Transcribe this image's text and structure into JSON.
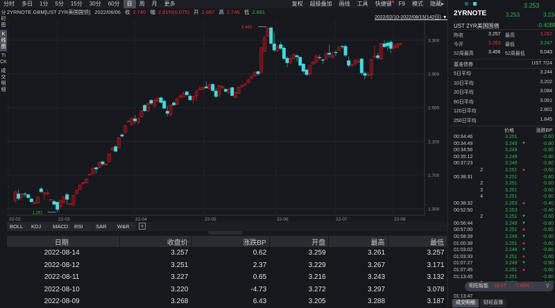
{
  "toolbar": {
    "periods": [
      "分时",
      "多日",
      "1分",
      "5分",
      "15分",
      "30分",
      "60分",
      "日",
      "周",
      "月",
      "更多"
    ],
    "active_period": "日",
    "right_menu": [
      "复权",
      "超级叠加",
      "画线",
      "工具",
      "快捷键",
      "F9",
      "模式",
      "隐藏▸"
    ]
  },
  "info": {
    "symbol": "2YRNOTE.GBM[UST 2YR美国国债]",
    "date": "2022/06/06",
    "close_label": "收",
    "close": "2.740",
    "change_label": "幅",
    "change": "2.81%(0.075)",
    "open_label": "开",
    "open": "2.667",
    "high_label": "高",
    "high": "2.745",
    "low_label": "低",
    "low": "2.661"
  },
  "side_tabs": [
    "分时图",
    "K线图",
    "TICK",
    "成交明细"
  ],
  "date_range": "2022/02/10-2022/08/15(142日)",
  "chart_data": {
    "type": "candlestick",
    "title": "2YRNOTE.GBM [UST 2YR美国国债] 日K",
    "y_ticks": [
      "3.300",
      "2.900",
      "2.500",
      "2.100",
      "1.700",
      "1.300"
    ],
    "ylim": [
      1.2,
      3.5
    ],
    "x_ticks": [
      {
        "label": "22-02",
        "x": 2
      },
      {
        "label": "22-03",
        "x": 73
      },
      {
        "label": "22-04",
        "x": 184
      },
      {
        "label": "22-05",
        "x": 284
      },
      {
        "label": "22-06",
        "x": 388
      },
      {
        "label": "22-07",
        "x": 473
      },
      {
        "label": "22-08",
        "x": 557
      }
    ],
    "annotations": [
      {
        "label": "3.465",
        "type": "max",
        "color": "#e8343c"
      },
      {
        "label": "1.261",
        "type": "min",
        "color": "#2db84d"
      }
    ],
    "up_color": "#b0161c",
    "down_color": "#46d8dc",
    "candles": [
      [
        1.4,
        1.52,
        1.37,
        1.5
      ],
      [
        1.48,
        1.53,
        1.4,
        1.42
      ],
      [
        1.44,
        1.49,
        1.4,
        1.47
      ],
      [
        1.48,
        1.5,
        1.44,
        1.47
      ],
      [
        1.47,
        1.48,
        1.42,
        1.43
      ],
      [
        1.42,
        1.43,
        1.38,
        1.38
      ],
      [
        1.37,
        1.39,
        1.36,
        1.37
      ],
      [
        1.37,
        1.45,
        1.37,
        1.44
      ],
      [
        1.54,
        1.56,
        1.49,
        1.5
      ],
      [
        1.49,
        1.5,
        1.4,
        1.49
      ],
      [
        1.48,
        1.53,
        1.46,
        1.49
      ],
      [
        1.41,
        1.42,
        1.4,
        1.41
      ],
      [
        1.39,
        1.41,
        1.35,
        1.35
      ],
      [
        1.38,
        1.39,
        1.26,
        1.29
      ],
      [
        1.33,
        1.4,
        1.3,
        1.4
      ],
      [
        1.38,
        1.45,
        1.36,
        1.44
      ],
      [
        1.47,
        1.49,
        1.35,
        1.41
      ],
      [
        1.36,
        1.37,
        1.35,
        1.36
      ],
      [
        1.34,
        1.46,
        1.34,
        1.46
      ],
      [
        1.48,
        1.53,
        1.47,
        1.52
      ],
      [
        1.53,
        1.59,
        1.52,
        1.58
      ],
      [
        1.6,
        1.62,
        1.58,
        1.61
      ],
      [
        1.61,
        1.66,
        1.6,
        1.65
      ],
      [
        1.71,
        1.72,
        1.7,
        1.71
      ],
      [
        1.72,
        1.79,
        1.71,
        1.78
      ],
      [
        1.79,
        1.8,
        1.72,
        1.77
      ],
      [
        1.79,
        1.86,
        1.78,
        1.85
      ],
      [
        1.86,
        1.87,
        1.81,
        1.83
      ],
      [
        1.83,
        1.84,
        1.82,
        1.83
      ],
      [
        1.86,
        1.96,
        1.85,
        1.95
      ],
      [
        2.0,
        2.03,
        1.99,
        2.02
      ],
      [
        2.04,
        2.06,
        1.97,
        1.98
      ],
      [
        2.03,
        2.15,
        2.01,
        2.14
      ],
      [
        2.18,
        2.2,
        2.15,
        2.16
      ],
      [
        2.21,
        2.3,
        2.19,
        2.28
      ],
      [
        2.34,
        2.35,
        2.33,
        2.34
      ],
      [
        2.3,
        2.39,
        2.29,
        2.37
      ],
      [
        2.37,
        2.41,
        2.31,
        2.34
      ],
      [
        2.33,
        2.38,
        2.3,
        2.37
      ],
      [
        2.39,
        2.47,
        2.38,
        2.46
      ],
      [
        2.53,
        2.54,
        2.45,
        2.46
      ],
      [
        2.46,
        2.56,
        2.45,
        2.55
      ],
      [
        2.59,
        2.6,
        2.53,
        2.55
      ],
      [
        2.52,
        2.6,
        2.5,
        2.59
      ],
      [
        2.58,
        2.63,
        2.56,
        2.61
      ],
      [
        2.62,
        2.63,
        2.55,
        2.56
      ],
      [
        2.58,
        2.6,
        2.49,
        2.49
      ],
      [
        2.46,
        2.52,
        2.4,
        2.43
      ],
      [
        2.42,
        2.54,
        2.39,
        2.53
      ],
      [
        2.56,
        2.57,
        2.52,
        2.53
      ],
      [
        2.54,
        2.62,
        2.53,
        2.6
      ],
      [
        2.62,
        2.66,
        2.61,
        2.64
      ],
      [
        2.63,
        2.69,
        2.62,
        2.67
      ],
      [
        2.69,
        2.7,
        2.64,
        2.65
      ],
      [
        2.64,
        2.66,
        2.58,
        2.59
      ],
      [
        2.6,
        2.64,
        2.55,
        2.63
      ],
      [
        2.64,
        2.71,
        2.58,
        2.69
      ],
      [
        2.72,
        2.76,
        2.71,
        2.72
      ],
      [
        2.72,
        2.75,
        2.71,
        2.74
      ],
      [
        2.75,
        2.81,
        2.73,
        2.73
      ],
      [
        2.73,
        2.8,
        2.71,
        2.77
      ],
      [
        2.78,
        2.79,
        2.69,
        2.7
      ],
      [
        2.7,
        2.73,
        2.62,
        2.63
      ],
      [
        2.65,
        2.77,
        2.62,
        2.76
      ],
      [
        2.74,
        2.76,
        2.72,
        2.75
      ],
      [
        2.72,
        2.73,
        2.68,
        2.69
      ],
      [
        2.68,
        2.74,
        2.66,
        2.72
      ],
      [
        2.74,
        2.75,
        2.64,
        2.64
      ],
      [
        2.62,
        2.69,
        2.62,
        2.68
      ],
      [
        2.67,
        2.75,
        2.66,
        2.74
      ],
      [
        2.75,
        2.78,
        2.74,
        2.76
      ],
      [
        2.78,
        2.79,
        2.76,
        2.78
      ],
      [
        2.8,
        2.84,
        2.79,
        2.83
      ],
      [
        2.85,
        2.88,
        2.84,
        2.87
      ],
      [
        2.88,
        2.93,
        2.87,
        2.92
      ],
      [
        2.93,
        2.94,
        2.88,
        2.9
      ],
      [
        2.92,
        3.22,
        2.91,
        3.21
      ],
      [
        3.17,
        3.35,
        3.16,
        3.33
      ],
      [
        3.35,
        3.46,
        3.34,
        3.44
      ],
      [
        3.45,
        3.46,
        3.25,
        3.26
      ],
      [
        3.26,
        3.39,
        3.16,
        3.18
      ],
      [
        3.18,
        3.24,
        3.16,
        3.22
      ],
      [
        3.25,
        3.28,
        3.19,
        3.2
      ],
      [
        3.21,
        3.24,
        3.06,
        3.08
      ],
      [
        3.09,
        3.11,
        2.98,
        3.03
      ],
      [
        3.03,
        3.1,
        3.02,
        3.08
      ],
      [
        3.08,
        3.14,
        3.07,
        3.13
      ],
      [
        3.12,
        3.13,
        3.05,
        3.1
      ],
      [
        3.1,
        3.11,
        2.99,
        3.0
      ],
      [
        3.02,
        3.03,
        2.91,
        2.93
      ],
      [
        2.95,
        2.96,
        2.88,
        2.89
      ],
      [
        2.9,
        3.01,
        2.87,
        3.0
      ],
      [
        3.02,
        3.05,
        3.01,
        3.04
      ],
      [
        3.04,
        3.13,
        3.03,
        3.11
      ],
      [
        3.1,
        3.13,
        3.07,
        3.09
      ],
      [
        3.07,
        3.08,
        3.02,
        3.06
      ],
      [
        3.08,
        3.16,
        3.07,
        3.14
      ],
      [
        3.15,
        3.25,
        3.1,
        3.13
      ],
      [
        3.1,
        3.17,
        3.08,
        3.12
      ],
      [
        3.16,
        3.18,
        3.11,
        3.15
      ],
      [
        3.18,
        3.23,
        3.17,
        3.21
      ],
      [
        3.23,
        3.24,
        3.2,
        3.22
      ],
      [
        3.23,
        3.25,
        3.1,
        3.12
      ],
      [
        3.06,
        3.11,
        2.98,
        3.0
      ],
      [
        3.01,
        3.02,
        2.98,
        3.01
      ],
      [
        3.02,
        3.08,
        3.0,
        3.06
      ],
      [
        3.05,
        3.08,
        3.03,
        3.05
      ],
      [
        3.08,
        3.09,
        2.89,
        2.91
      ],
      [
        2.91,
        2.93,
        2.84,
        2.88
      ],
      [
        2.89,
        2.92,
        2.88,
        2.89
      ],
      [
        2.89,
        3.08,
        2.84,
        3.07
      ],
      [
        3.1,
        3.24,
        3.08,
        3.11
      ],
      [
        3.12,
        3.15,
        3.07,
        3.09
      ],
      [
        3.08,
        3.27,
        3.07,
        3.26
      ],
      [
        3.26,
        3.3,
        3.21,
        3.22
      ],
      [
        3.27,
        3.29,
        3.18,
        3.23
      ],
      [
        3.28,
        3.3,
        3.15,
        3.2
      ],
      [
        3.21,
        3.26,
        3.19,
        3.23
      ],
      [
        3.22,
        3.27,
        3.2,
        3.25
      ],
      [
        3.26,
        3.27,
        3.25,
        3.26
      ]
    ]
  },
  "indicators": [
    "BOLL",
    "KDJ",
    "MACD",
    "RSI",
    "SAR",
    "W&R"
  ],
  "table": {
    "headers": [
      "日期",
      "收盘价",
      "涨跌BP",
      "开盘",
      "最高",
      "最低"
    ],
    "rows": [
      [
        "2022-08-14",
        "3.257",
        "0.62",
        "3.259",
        "3.261",
        "3.257"
      ],
      [
        "2022-08-12",
        "3.251",
        "2.37",
        "3.229",
        "3.267",
        "3.171"
      ],
      [
        "2022-08-11",
        "3.227",
        "0.65",
        "3.216",
        "3.243",
        "3.132"
      ],
      [
        "2022-08-10",
        "3.220",
        "-4.73",
        "3.272",
        "3.297",
        "3.078"
      ],
      [
        "2022-08-09",
        "3.268",
        "6.43",
        "3.205",
        "3.288",
        "3.187"
      ]
    ]
  },
  "quote": {
    "symbol": "2YRNOTE",
    "last": "3.253",
    "bid": "3.253",
    "ask": "3.234",
    "name": "UST 2YR美国国债",
    "change_bp": "-0.40BP",
    "stats": [
      {
        "l1": "昨收",
        "v1": "3.257",
        "l2": "最高",
        "v2": "3.267",
        "c1": "#dddddd",
        "c2": "#e8343c"
      },
      {
        "l1": "今开",
        "v1": "3.263",
        "l2": "最低",
        "v2": "3.247",
        "c1": "#e8343c",
        "c2": "#2db84d"
      },
      {
        "l1": "52周最高",
        "v1": "3.456",
        "l2": "52周最低",
        "v2": "0.043",
        "c1": "#dddddd",
        "c2": "#dddddd"
      }
    ],
    "bench_label": "基准债券",
    "bench_value": "UST 7/24",
    "averages": [
      {
        "label": "5日平均",
        "value": "3.244"
      },
      {
        "label": "10日平均",
        "value": "3.202"
      },
      {
        "label": "20日平均",
        "value": "3.084"
      },
      {
        "label": "60日平均",
        "value": "3.061"
      },
      {
        "label": "120日平均",
        "value": "2.801"
      },
      {
        "label": "250日平均",
        "value": "1.845"
      }
    ]
  },
  "ticks": {
    "headers": [
      "价格",
      "涨跌BP"
    ],
    "rows": [
      {
        "t": "00:34:46",
        "p": "3.251",
        "a": "",
        "c": "-0.60"
      },
      {
        "t": "00:34:49",
        "p": "3.249",
        "a": "down",
        "c": "-0.80"
      },
      {
        "t": "00:34:56",
        "p": "3.249",
        "a": "",
        "c": "-0.80"
      },
      {
        "t": "00:35:12",
        "p": "3.249",
        "a": "",
        "c": "-0.80"
      },
      {
        "t": "00:37:23",
        "p": "3.249",
        "a": "",
        "c": "-0.80"
      },
      {
        "t": "2",
        "p": "3.251",
        "a": "up",
        "c": "-0.60"
      },
      {
        "t": "00:38:31",
        "p": "3.251",
        "a": "",
        "c": "-0.60"
      },
      {
        "t": "2",
        "p": "3.251",
        "a": "",
        "c": "-0.60"
      },
      {
        "t": "3",
        "p": "3.251",
        "a": "",
        "c": "-0.60"
      },
      {
        "t": "4",
        "p": "3.251",
        "a": "",
        "c": "-0.60"
      },
      {
        "t": "00:38:32",
        "p": "3.253",
        "a": "up",
        "c": "-0.40"
      },
      {
        "t": "00:52:50",
        "p": "3.253",
        "a": "",
        "c": "-0.40"
      },
      {
        "t": "2",
        "p": "3.251",
        "a": "down",
        "c": "-0.60"
      },
      {
        "t": "00:56:44",
        "p": "3.249",
        "a": "down",
        "c": "-0.80"
      },
      {
        "t": "00:57:00",
        "p": "3.251",
        "a": "up",
        "c": "-0.60"
      },
      {
        "t": "00:58:39",
        "p": "3.249",
        "a": "down",
        "c": "-0.80"
      },
      {
        "t": "01:00:38",
        "p": "3.251",
        "a": "up",
        "c": "-0.60"
      },
      {
        "t": "01:03:02",
        "p": "3.249",
        "a": "down",
        "c": "-0.80"
      },
      {
        "t": "01:03:33",
        "p": "3.251",
        "a": "up",
        "c": "-0.60"
      },
      {
        "t": "01:07:27",
        "p": "3.249",
        "a": "down",
        "c": "-0.80"
      },
      {
        "t": "01:07:45",
        "p": "3.251",
        "a": "up",
        "c": "-0.60"
      },
      {
        "t": "01:13:45",
        "p": "3.251",
        "a": "",
        "c": "-0.60"
      },
      {
        "t": "2",
        "p": "3.251",
        "a": "",
        "c": "-0.60"
      },
      {
        "t": "3",
        "p": "",
        "a": "",
        "c": ""
      },
      {
        "t": "01:13:47",
        "p": "",
        "a": "",
        "c": ""
      }
    ]
  },
  "popup": {
    "name": "明阳智能",
    "price": "29.07",
    "pct": "1.43%"
  },
  "bottom_tabs": [
    "成交明细",
    "财经直播"
  ]
}
